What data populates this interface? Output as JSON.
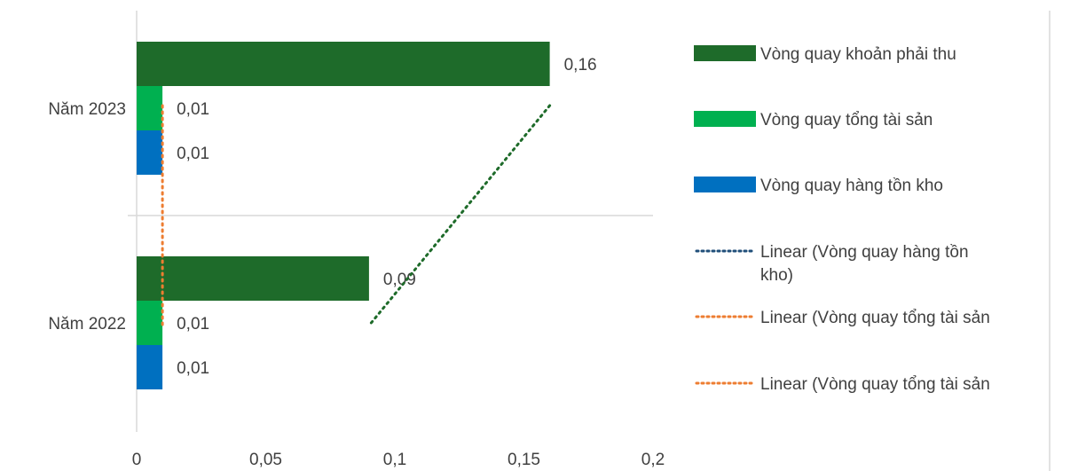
{
  "chart_data": {
    "type": "bar",
    "orientation": "horizontal",
    "categories": [
      "Năm 2023",
      "Năm 2022"
    ],
    "series": [
      {
        "name": "Vòng quay khoản phải thu",
        "values": [
          0.16,
          0.09
        ],
        "labels": [
          "0,16",
          "0,09"
        ],
        "color": "#1e6b2a"
      },
      {
        "name": "Vòng quay tổng tài sản",
        "values": [
          0.01,
          0.01
        ],
        "labels": [
          "0,01",
          "0,01"
        ],
        "color": "#00b050"
      },
      {
        "name": "Vòng quay hàng tồn kho",
        "values": [
          0.01,
          0.01
        ],
        "labels": [
          "0,01",
          "0,01"
        ],
        "color": "#0070c0"
      }
    ],
    "trendlines": [
      {
        "name": "Linear (Vòng quay hàng tồn kho)",
        "color": "#1f4e79",
        "points": [
          [
            0.01,
            "Năm 2023"
          ],
          [
            0.01,
            "Năm 2022"
          ]
        ]
      },
      {
        "name": "Linear (Vòng quay tổng tài sản",
        "color": "#ed7d31",
        "points": [
          [
            0.01,
            "Năm 2023"
          ],
          [
            0.01,
            "Năm 2022"
          ]
        ]
      },
      {
        "name": "Linear (Vòng quay tổng tài sản",
        "color": "#ed7d31",
        "points": [
          [
            0.01,
            "Năm 2023"
          ],
          [
            0.01,
            "Năm 2022"
          ]
        ]
      }
    ],
    "khoan_phai_thu_trendline": {
      "color": "#1e6b2a",
      "points": [
        [
          0.16,
          "Năm 2023"
        ],
        [
          0.09,
          "Năm 2022"
        ]
      ]
    },
    "xlim": [
      0,
      0.2
    ],
    "xticks": [
      0,
      0.05,
      0.1,
      0.15,
      0.2
    ],
    "xtick_labels": [
      "0",
      "0,05",
      "0,1",
      "0,15",
      "0,2"
    ],
    "grid": false,
    "legend_position": "right"
  }
}
